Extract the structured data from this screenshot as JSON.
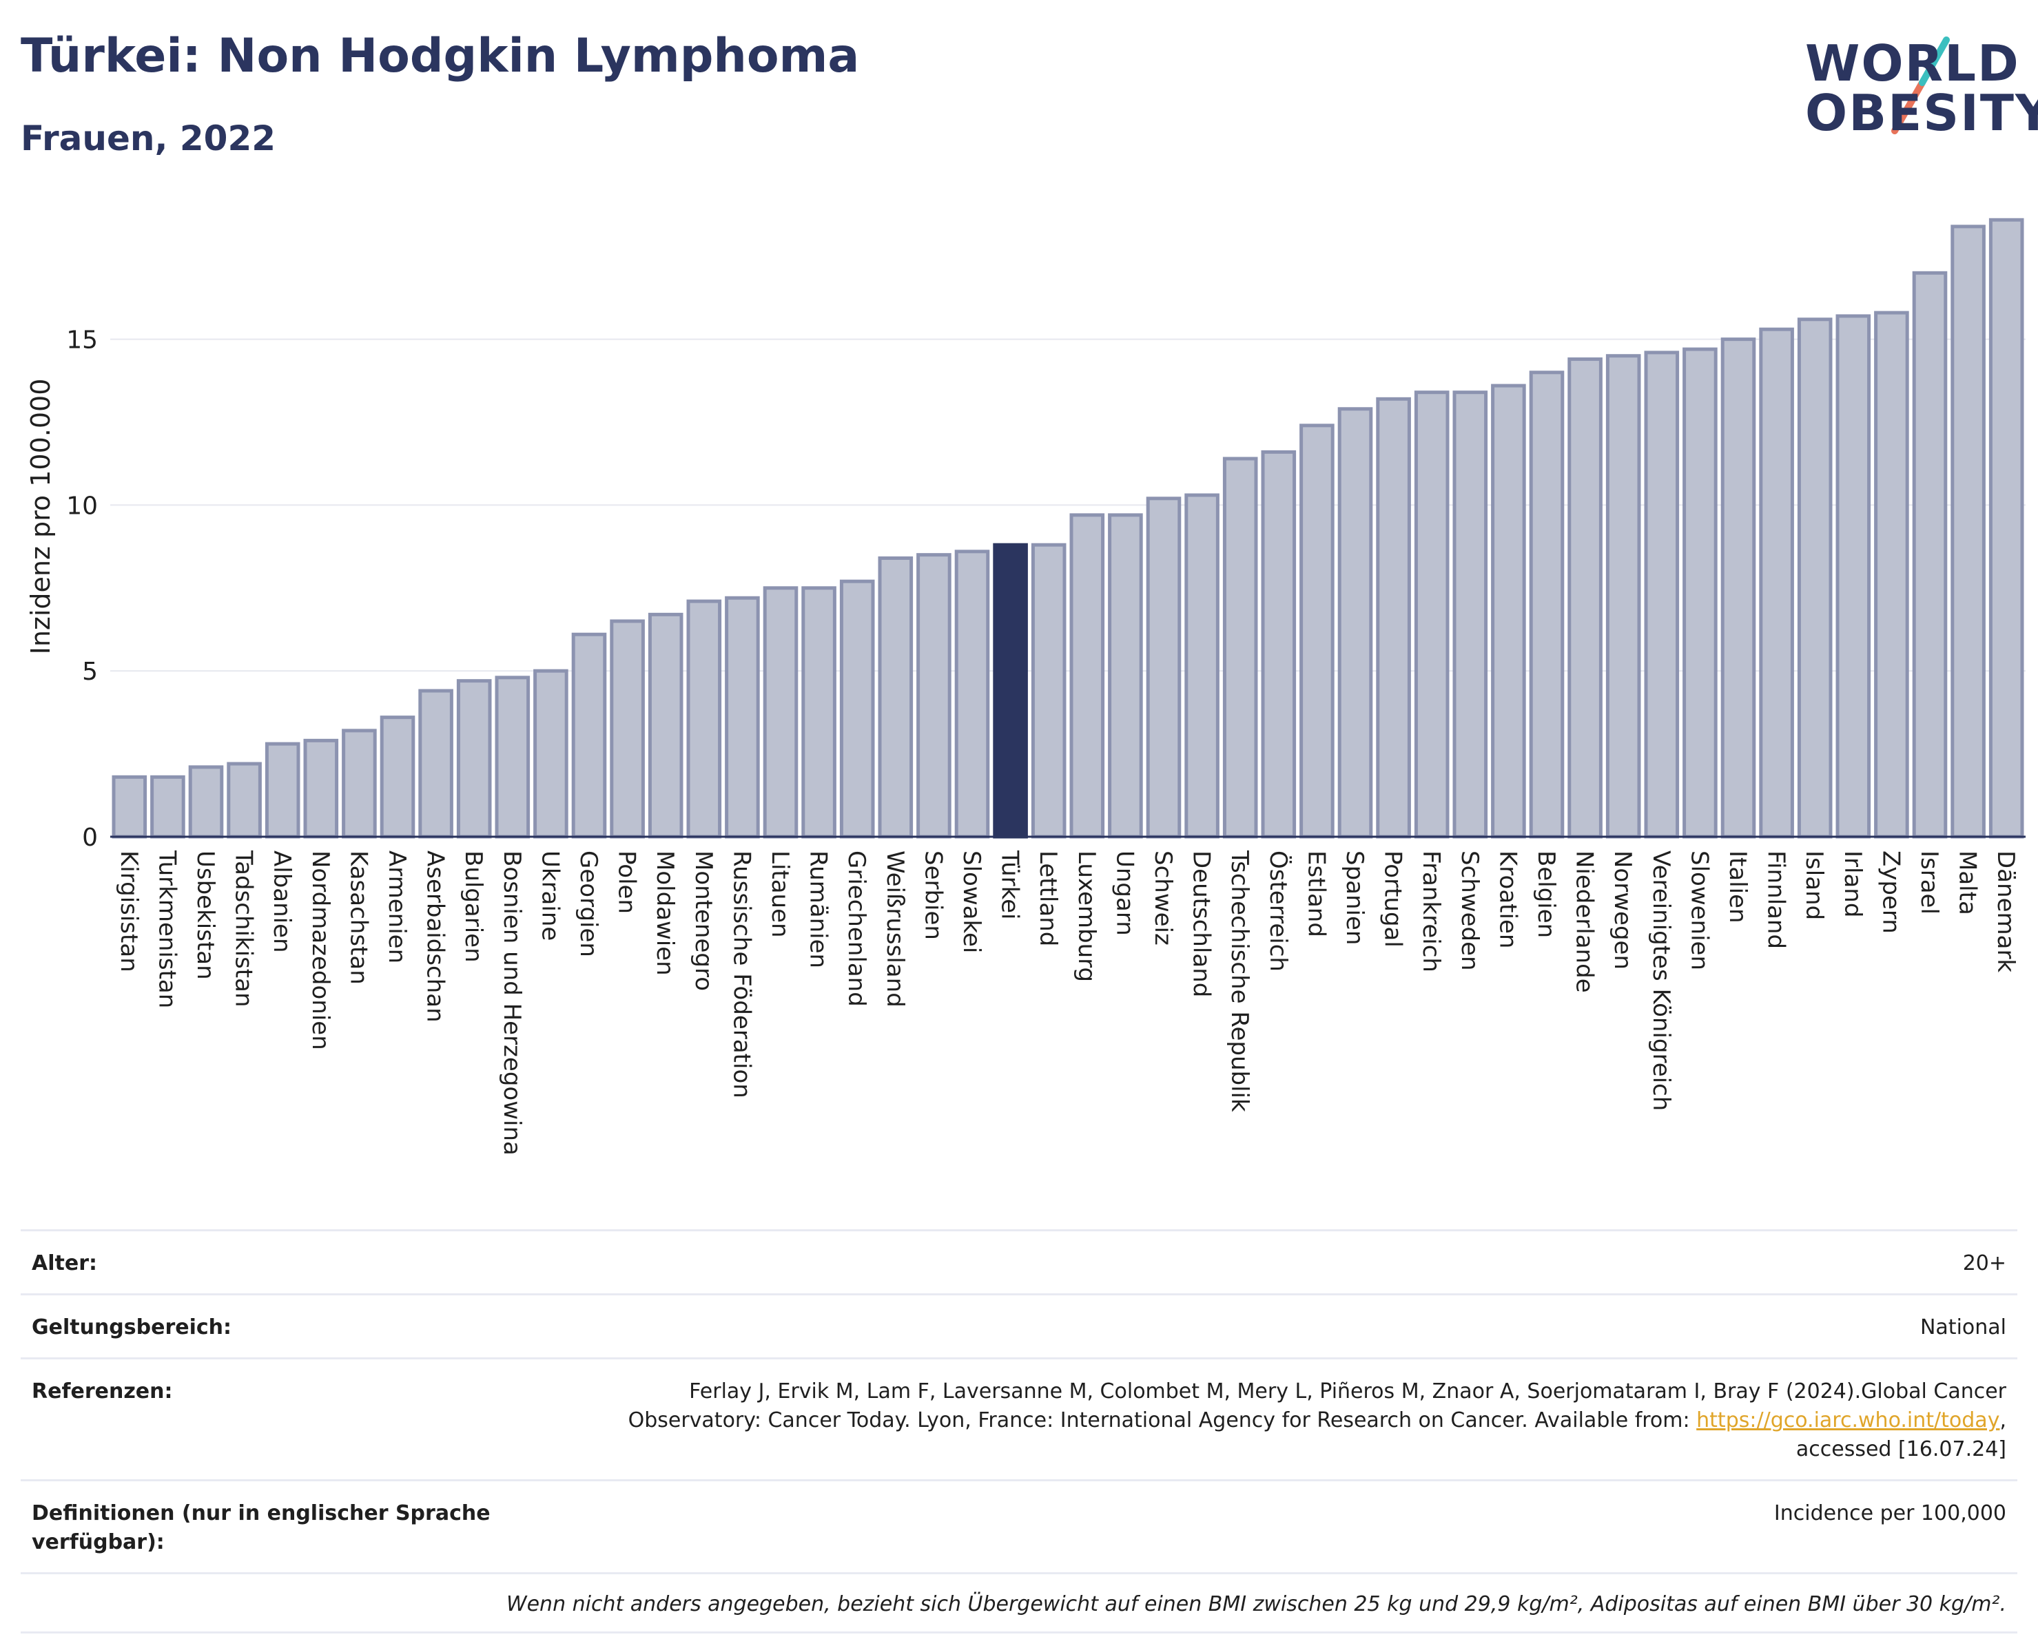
{
  "header": {
    "title": "Türkei: Non Hodgkin Lymphoma",
    "subtitle": "Frauen, 2022"
  },
  "logo": {
    "line1": "WORLD",
    "line2": "OBESITY",
    "colors": {
      "text": "#2b355f",
      "slash_top": "#3bbfbf",
      "slash_bottom": "#e8735a"
    }
  },
  "chart_data": {
    "type": "bar",
    "ylabel": "Inzidenz pro 100.000",
    "xlabel": "",
    "ylim": [
      0,
      19
    ],
    "yticks": [
      0,
      5,
      10,
      15
    ],
    "grid": true,
    "highlight": "Türkei",
    "colors": {
      "bar": "#bcc1d0",
      "bar_border": "#8c93b0",
      "highlight": "#2b355f",
      "grid": "#e6e8ef"
    },
    "categories": [
      "Kirgisistan",
      "Turkmenistan",
      "Usbekistan",
      "Tadschikistan",
      "Albanien",
      "Nordmazedonien",
      "Kasachstan",
      "Armenien",
      "Aserbaidschan",
      "Bulgarien",
      "Bosnien und Herzegowina",
      "Ukraine",
      "Georgien",
      "Polen",
      "Moldawien",
      "Montenegro",
      "Russische Föderation",
      "Litauen",
      "Rumänien",
      "Griechenland",
      "Weißrussland",
      "Serbien",
      "Slowakei",
      "Türkei",
      "Lettland",
      "Luxemburg",
      "Ungarn",
      "Schweiz",
      "Deutschland",
      "Tschechische Republik",
      "Österreich",
      "Estland",
      "Spanien",
      "Portugal",
      "Frankreich",
      "Schweden",
      "Kroatien",
      "Belgien",
      "Niederlande",
      "Norwegen",
      "Vereinigtes Königreich",
      "Slowenien",
      "Italien",
      "Finnland",
      "Island",
      "Irland",
      "Zypern",
      "Israel",
      "Malta",
      "Dänemark"
    ],
    "values": [
      1.8,
      1.8,
      2.1,
      2.2,
      2.8,
      2.9,
      3.2,
      3.6,
      4.4,
      4.7,
      4.8,
      5.0,
      6.1,
      6.5,
      6.7,
      7.1,
      7.2,
      7.5,
      7.5,
      7.7,
      8.4,
      8.5,
      8.6,
      8.8,
      8.8,
      9.7,
      9.7,
      10.2,
      10.3,
      11.4,
      11.6,
      12.4,
      12.9,
      13.2,
      13.4,
      13.4,
      13.6,
      14.0,
      14.4,
      14.5,
      14.6,
      14.7,
      15.0,
      15.3,
      15.6,
      15.7,
      15.8,
      17.0,
      18.4,
      18.6
    ]
  },
  "info": {
    "age_label": "Alter:",
    "age_value": "20+",
    "scope_label": "Geltungsbereich:",
    "scope_value": "National",
    "ref_label": "Referenzen:",
    "ref_text1": "Ferlay J, Ervik M, Lam F, Laversanne M, Colombet M, Mery L, Piñeros M, Znaor A, Soerjomataram I, Bray F (2024).Global Cancer Observatory: Cancer Today. Lyon, France: International Agency for Research on Cancer. Available from: ",
    "ref_link": "https://gco.iarc.who.int/today",
    "ref_text2": ", accessed [16.07.24]",
    "def_label": "Definitionen (nur in englischer Sprache verfügbar):",
    "def_value": "Incidence per 100,000",
    "note": "Wenn nicht anders angegeben, bezieht sich Übergewicht auf einen BMI zwischen 25 kg und 29,9 kg/m², Adipositas auf einen BMI über 30 kg/m²."
  }
}
